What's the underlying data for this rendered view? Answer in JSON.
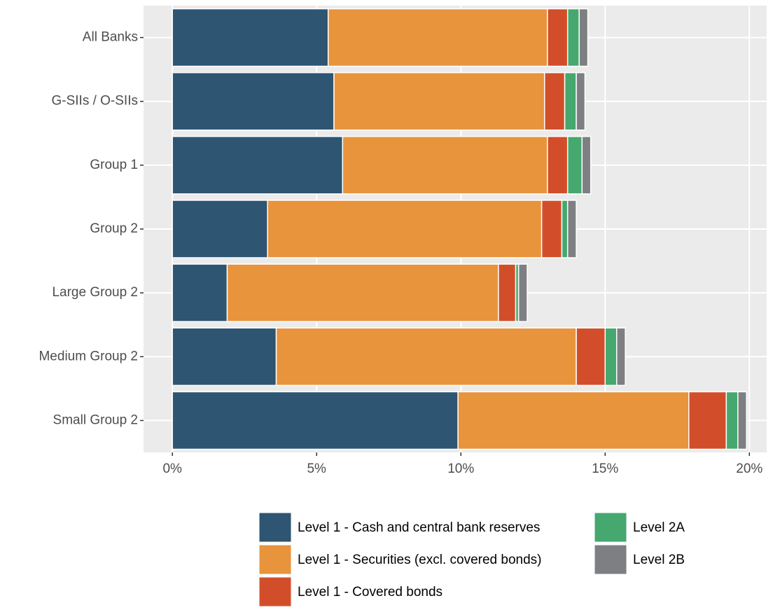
{
  "chart_data": {
    "type": "stacked-barh",
    "categories": [
      "All Banks",
      "G-SIIs / O-SIIs",
      "Group 1",
      "Group 2",
      "Large Group 2",
      "Medium Group 2",
      "Small Group 2"
    ],
    "series": [
      {
        "name": "Level 1 - Cash and central bank reserves",
        "color": "#2e5572",
        "values": [
          5.4,
          5.6,
          5.9,
          3.3,
          1.9,
          3.6,
          9.9
        ]
      },
      {
        "name": "Level 1 - Securities (excl. covered bonds)",
        "color": "#e8943c",
        "values": [
          7.6,
          7.3,
          7.1,
          9.5,
          9.4,
          10.4,
          8.0
        ]
      },
      {
        "name": "Level 1 - Covered bonds",
        "color": "#d24e2a",
        "values": [
          0.7,
          0.7,
          0.7,
          0.7,
          0.6,
          1.0,
          1.3
        ]
      },
      {
        "name": "Level 2A",
        "color": "#45a86f",
        "values": [
          0.4,
          0.4,
          0.5,
          0.2,
          0.1,
          0.4,
          0.4
        ]
      },
      {
        "name": "Level 2B",
        "color": "#7e7f83",
        "values": [
          0.3,
          0.3,
          0.3,
          0.3,
          0.3,
          0.3,
          0.3
        ]
      }
    ],
    "xlim": [
      -1,
      20.6
    ],
    "xticks": [
      {
        "value": 0,
        "label": "0%"
      },
      {
        "value": 5,
        "label": "5%"
      },
      {
        "value": 10,
        "label": "10%"
      },
      {
        "value": 15,
        "label": "15%"
      },
      {
        "value": 20,
        "label": "20%"
      }
    ],
    "grid": true
  }
}
